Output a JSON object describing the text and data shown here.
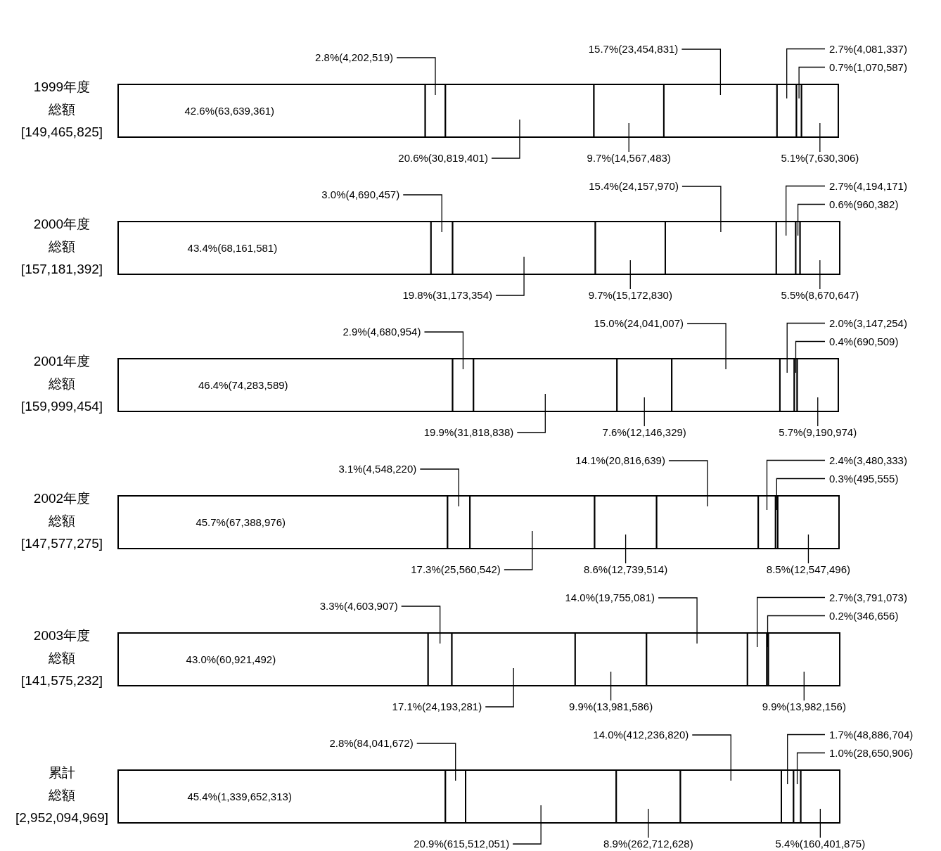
{
  "chart_data": {
    "type": "bar",
    "orientation": "horizontal",
    "stacked": true,
    "tick_labels": false,
    "xlim": [
      0,
      100
    ],
    "categories": [
      "1999年度",
      "2000年度",
      "2001年度",
      "2002年度",
      "2003年度",
      "累計"
    ],
    "annotations": [
      "総額[149,465,825]",
      "総額[157,181,392]",
      "総額[159,999,454]",
      "総額[147,577,275]",
      "総額[141,575,232]",
      "総額[2,952,094,969]"
    ],
    "series": [
      {
        "color": "#ffffff",
        "values": [
          42.6,
          43.4,
          46.4,
          45.7,
          43.0,
          45.4
        ],
        "value_labels": [
          "42.6%(63,639,361)",
          "43.4%(68,161,581)",
          "46.4%(74,283,589)",
          "45.7%(67,388,976)",
          "43.0%(60,921,492)",
          "45.4%(1,339,652,313)"
        ]
      },
      {
        "color": "#ffffff",
        "values": [
          2.8,
          3.0,
          2.9,
          3.1,
          3.3,
          2.8
        ],
        "value_labels": [
          "2.8%(4,202,519)",
          "3.0%(4,690,457)",
          "2.9%(4,680,954)",
          "3.1%(4,548,220)",
          "3.3%(4,603,907)",
          "2.8%(84,041,672)"
        ]
      },
      {
        "color": "#ffffff",
        "values": [
          20.6,
          19.8,
          19.9,
          17.3,
          17.1,
          20.9
        ],
        "value_labels": [
          "20.6%(30,819,401)",
          "19.8%(31,173,354)",
          "19.9%(31,818,838)",
          "17.3%(25,560,542)",
          "17.1%(24,193,281)",
          "20.9%(615,512,051)"
        ]
      },
      {
        "color": "#ffffff",
        "values": [
          9.7,
          9.7,
          7.6,
          8.6,
          9.9,
          8.9
        ],
        "value_labels": [
          "9.7%(14,567,483)",
          "9.7%(15,172,830)",
          "7.6%(12,146,329)",
          "8.6%(12,739,514)",
          "9.9%(13,981,586)",
          "8.9%(262,712,628)"
        ]
      },
      {
        "color": "#ffffff",
        "values": [
          15.7,
          15.4,
          15.0,
          14.1,
          14.0,
          14.0
        ],
        "value_labels": [
          "15.7%(23,454,831)",
          "15.4%(24,157,970)",
          "15.0%(24,041,007)",
          "14.1%(20,816,639)",
          "14.0%(19,755,081)",
          "14.0%(412,236,820)"
        ]
      },
      {
        "color": "#ffffff",
        "values": [
          2.7,
          2.7,
          2.0,
          2.4,
          2.7,
          1.7
        ],
        "value_labels": [
          "2.7%(4,081,337)",
          "2.7%(4,194,171)",
          "2.0%(3,147,254)",
          "2.4%(3,480,333)",
          "2.7%(3,791,073)",
          "1.7%(48,886,704)"
        ]
      },
      {
        "color": "#ffffff",
        "values": [
          0.7,
          0.6,
          0.4,
          0.3,
          0.2,
          1.0
        ],
        "value_labels": [
          "0.7%(1,070,587)",
          "0.6%(960,382)",
          "0.4%(690,509)",
          "0.3%(495,555)",
          "0.2%(346,656)",
          "1.0%(28,650,906)"
        ]
      },
      {
        "color": "#ffffff",
        "values": [
          5.1,
          5.5,
          5.7,
          8.5,
          9.9,
          5.4
        ],
        "value_labels": [
          "5.1%(7,630,306)",
          "5.5%(8,670,647)",
          "5.7%(9,190,974)",
          "8.5%(12,547,496)",
          "9.9%(13,982,156)",
          "5.4%(160,401,875)"
        ]
      }
    ]
  }
}
